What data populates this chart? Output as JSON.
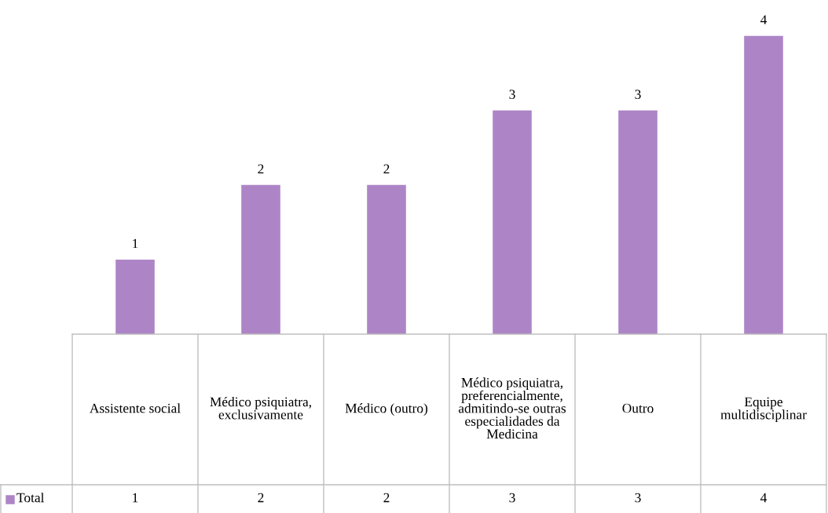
{
  "chart_data": {
    "type": "bar",
    "categories": [
      "Assistente social",
      "Médico psiquiatra, exclusivamente",
      "Médico (outro)",
      "Médico psiquiatra, preferencialmente, admitindo-se outras especialidades da Medicina",
      "Outro",
      "Equipe multidisciplinar"
    ],
    "series": [
      {
        "name": "Total",
        "color": "#ad85c7",
        "values": [
          1,
          2,
          2,
          3,
          3,
          4
        ],
        "value_labels": [
          "1",
          "2",
          "2",
          "3",
          "3",
          "4"
        ]
      }
    ],
    "annotations": [
      "1",
      "2",
      "2",
      "3",
      "3",
      "4"
    ],
    "legend": "bottom left"
  }
}
